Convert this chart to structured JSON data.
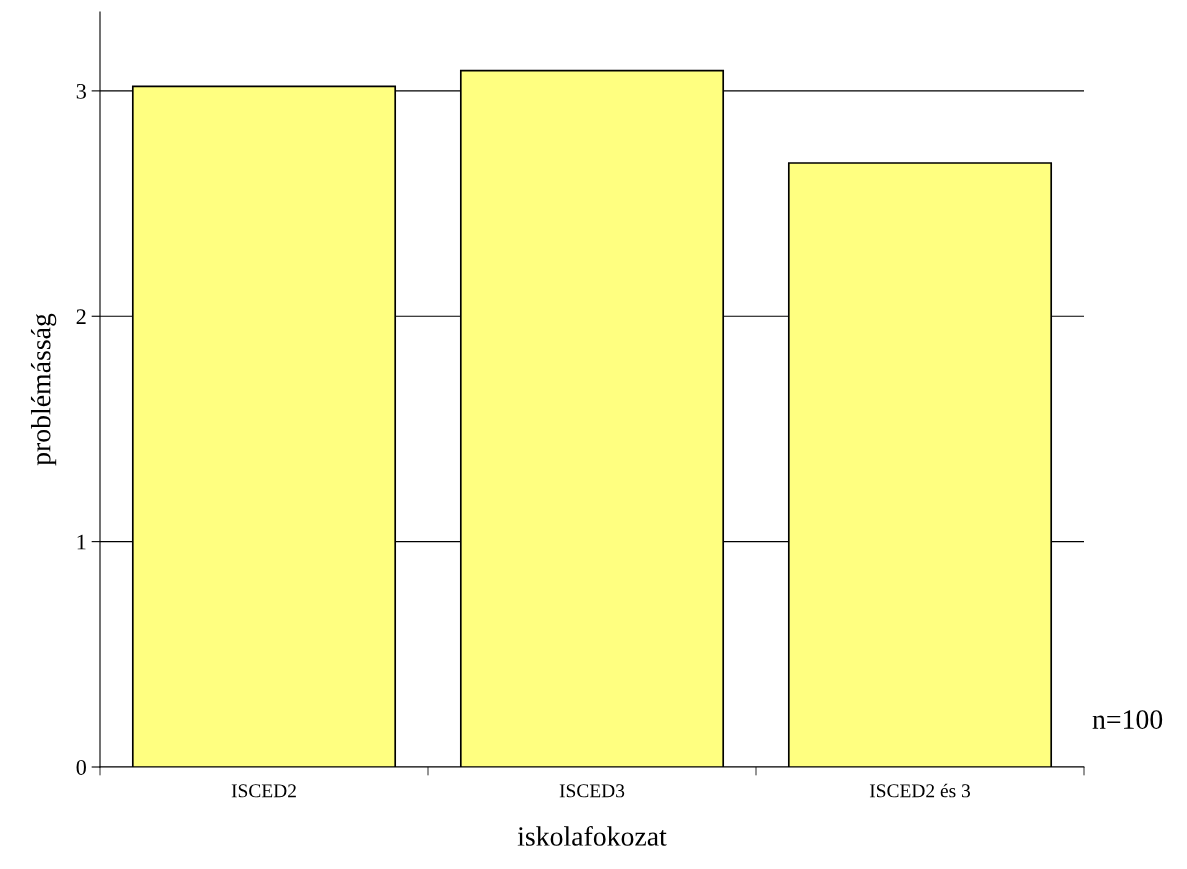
{
  "chart_data": {
    "type": "bar",
    "categories": [
      "ISCED2",
      "ISCED3",
      "ISCED2 és 3"
    ],
    "values": [
      3.02,
      3.09,
      2.68
    ],
    "color": "#ffff80",
    "xlabel": "iskolafokozat",
    "ylabel": "problémásság",
    "ylim": [
      0,
      3.35
    ],
    "yticks": [
      0,
      1,
      2,
      3
    ],
    "grid": "y",
    "annotations": [
      "n=100"
    ]
  }
}
